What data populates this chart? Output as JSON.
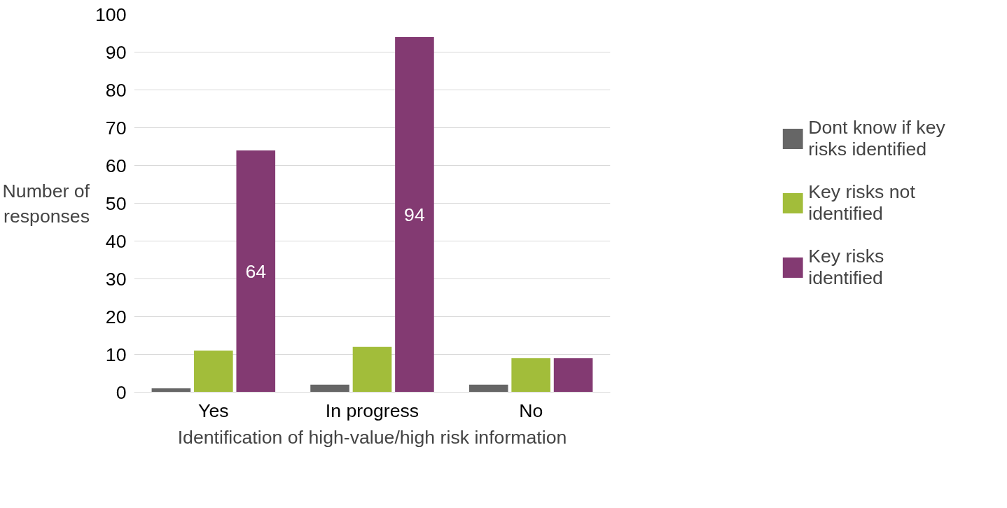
{
  "chart_data": {
    "type": "bar",
    "xlabel": "Identification of high-value/high risk information",
    "ylabel": "Number of responses",
    "categories": [
      "Yes",
      "In progress",
      "No"
    ],
    "series": [
      {
        "name": "Dont know if key risks identified",
        "color": "#666666",
        "values": [
          1,
          2,
          2
        ]
      },
      {
        "name": "Key risks not identified",
        "color": "#a2bd3a",
        "values": [
          11,
          12,
          9
        ]
      },
      {
        "name": "Key risks identified",
        "color": "#833a72",
        "values": [
          64,
          94,
          9
        ],
        "value_labels": [
          "64",
          "94",
          null
        ]
      }
    ],
    "ylim": [
      0,
      100
    ],
    "yticks": [
      0,
      10,
      20,
      30,
      40,
      50,
      60,
      70,
      80,
      90,
      100
    ],
    "grid": "y",
    "legend": "right"
  }
}
